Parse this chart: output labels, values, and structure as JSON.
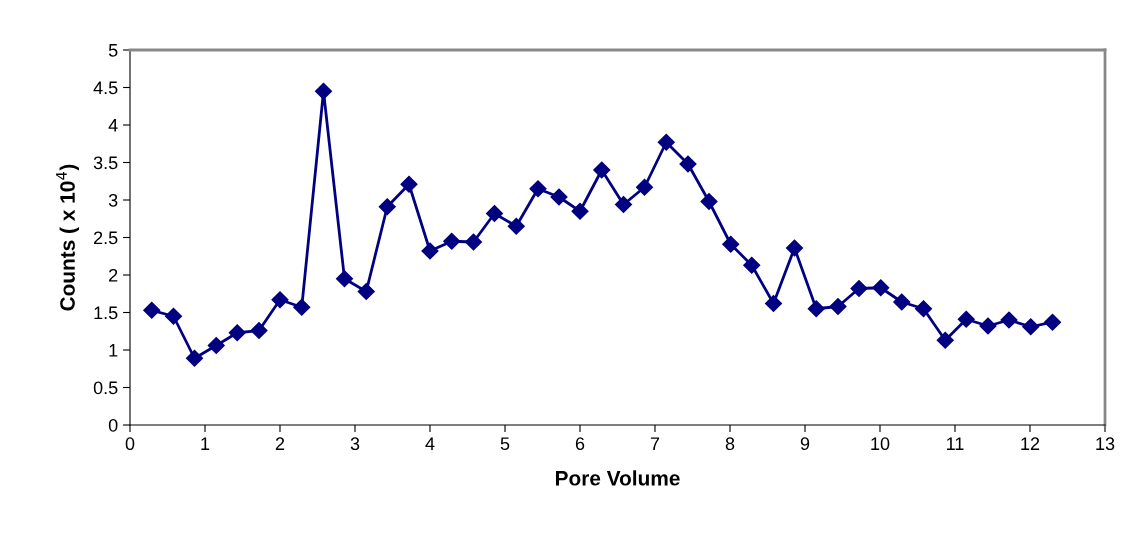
{
  "chart_data": {
    "type": "line",
    "xlabel": "Pore Volume",
    "ylabel": "Counts ( x 10$^{4}$)",
    "x": [
      0.29,
      0.58,
      0.86,
      1.15,
      1.43,
      1.72,
      2.0,
      2.29,
      2.58,
      2.86,
      3.15,
      3.43,
      3.72,
      4.0,
      4.29,
      4.58,
      4.86,
      5.15,
      5.44,
      5.72,
      6.0,
      6.29,
      6.58,
      6.86,
      7.15,
      7.44,
      7.72,
      8.01,
      8.29,
      8.58,
      8.86,
      9.15,
      9.44,
      9.72,
      10.01,
      10.29,
      10.58,
      10.87,
      11.15,
      11.44,
      11.72,
      12.01,
      12.3
    ],
    "series": [
      {
        "color": "#000080",
        "values": [
          1.53,
          1.45,
          0.89,
          1.06,
          1.23,
          1.26,
          1.67,
          1.57,
          4.45,
          1.95,
          1.78,
          2.91,
          3.21,
          2.32,
          2.45,
          2.44,
          2.82,
          2.65,
          3.15,
          3.04,
          2.85,
          3.4,
          2.94,
          3.17,
          3.77,
          3.48,
          2.98,
          2.41,
          2.13,
          1.62,
          2.36,
          1.55,
          1.58,
          1.82,
          1.83,
          1.64,
          1.55,
          1.13,
          1.41,
          1.32,
          1.4,
          1.31,
          1.37
        ]
      }
    ],
    "xlim": [
      0,
      13
    ],
    "xticks": [
      0,
      1,
      2,
      3,
      4,
      5,
      6,
      7,
      8,
      9,
      10,
      11,
      12,
      13
    ],
    "ylim": [
      0,
      5
    ],
    "yticks": [
      0,
      0.5,
      1,
      1.5,
      2,
      2.5,
      3,
      3.5,
      4,
      4.5,
      5
    ],
    "marker": "diamond",
    "line_style": "solid",
    "grid": false,
    "legend": false
  }
}
